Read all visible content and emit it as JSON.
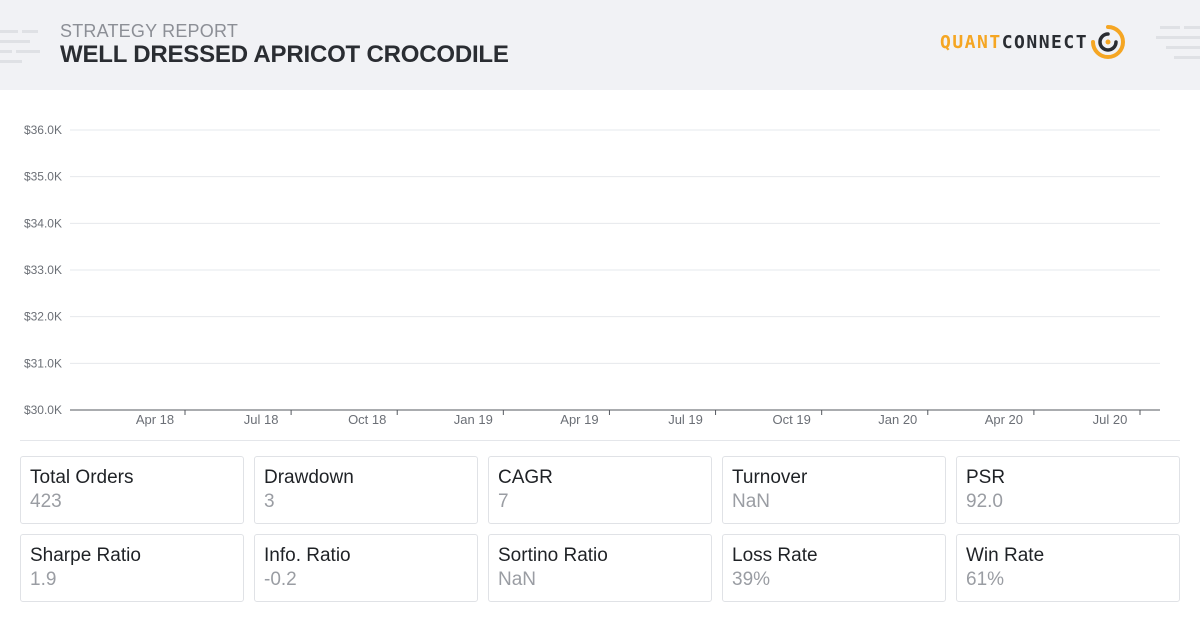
{
  "header": {
    "subtitle": "STRATEGY REPORT",
    "title": "WELL DRESSED APRICOT CROCODILE",
    "logo_quant": "QUANT",
    "logo_connect": "CONNECT"
  },
  "colors": {
    "header_bg": "#f1f2f5",
    "accent": "#f5a623",
    "text_dark": "#2a2d32",
    "value_gray": "#9a9da3"
  },
  "chart_data": {
    "type": "line",
    "title": "",
    "xlabel": "",
    "ylabel": "",
    "y_ticks": [
      "$30.0K",
      "$31.0K",
      "$32.0K",
      "$33.0K",
      "$34.0K",
      "$35.0K",
      "$36.0K"
    ],
    "ylim": [
      30000,
      36000
    ],
    "x_ticks": [
      "Apr 18",
      "Jul 18",
      "Oct 18",
      "Jan 19",
      "Apr 19",
      "Jul 19",
      "Oct 19",
      "Jan 20",
      "Apr 20",
      "Jul 20"
    ],
    "grid": true,
    "series": []
  },
  "stats": [
    {
      "label": "Total Orders",
      "value": "423"
    },
    {
      "label": "Drawdown",
      "value": "3"
    },
    {
      "label": "CAGR",
      "value": "7"
    },
    {
      "label": "Turnover",
      "value": "NaN"
    },
    {
      "label": "PSR",
      "value": "92.0"
    },
    {
      "label": "Sharpe Ratio",
      "value": "1.9"
    },
    {
      "label": "Info. Ratio",
      "value": "-0.2"
    },
    {
      "label": "Sortino Ratio",
      "value": "NaN"
    },
    {
      "label": "Loss Rate",
      "value": "39%"
    },
    {
      "label": "Win Rate",
      "value": "61%"
    }
  ]
}
